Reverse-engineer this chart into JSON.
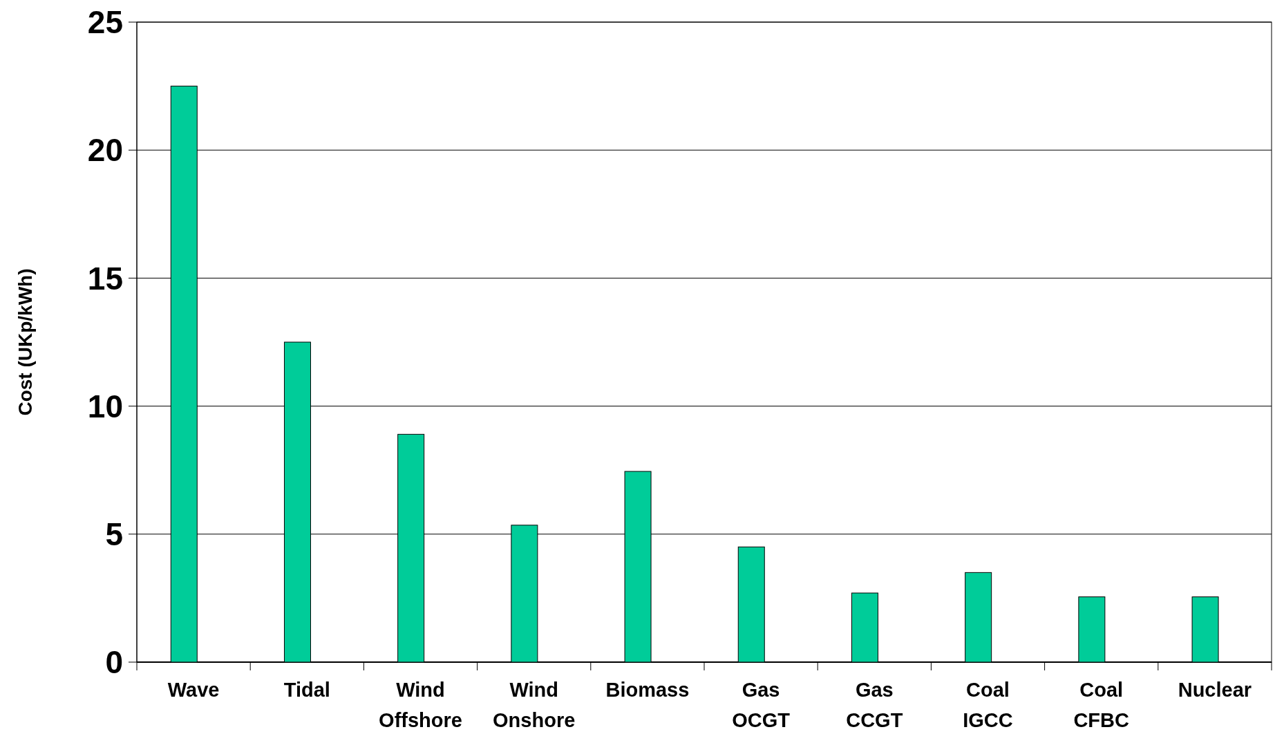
{
  "chart_data": {
    "type": "bar",
    "ylabel": "Cost (UKp/kWh)",
    "categories": [
      "Wave",
      "Tidal",
      "Wind Offshore",
      "Wind Onshore",
      "Biomass",
      "Gas OCGT",
      "Gas CCGT",
      "Coal IGCC",
      "Coal CFBC",
      "Nuclear"
    ],
    "values": [
      22.5,
      12.5,
      8.9,
      5.35,
      7.45,
      4.5,
      2.7,
      3.5,
      2.55,
      2.55
    ],
    "color": "#00cc99",
    "ylim": [
      0,
      25
    ],
    "yticks": [
      0,
      5,
      10,
      15,
      20,
      25
    ],
    "grid": "y"
  }
}
